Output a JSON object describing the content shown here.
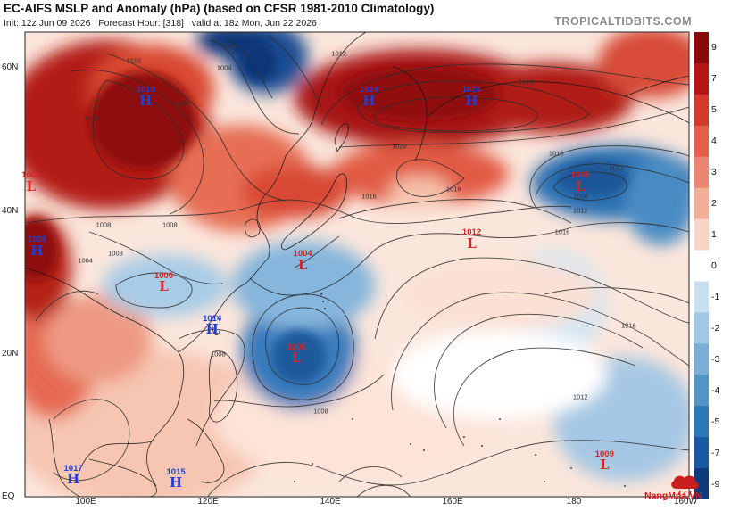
{
  "header": {
    "title": "EC-AIFS MSLP and Anomaly (hPa) (based on CFSR 1981-2010 Climatology)",
    "init": "Init: 12z Jun 09 2026",
    "forecast_hour": "Forecast Hour: [318]",
    "valid": "valid at 18z Mon, Jun 22 2026",
    "brand": "TROPICALTIDBITS.COM"
  },
  "axes": {
    "lat_labels": [
      "60N",
      "40N",
      "20N",
      "EQ"
    ],
    "lon_labels": [
      "100E",
      "120E",
      "140E",
      "160E",
      "180",
      "160W"
    ]
  },
  "colorbar": {
    "values": [
      "9",
      "7",
      "5",
      "4",
      "3",
      "2",
      "1",
      "0",
      "-1",
      "-2",
      "-3",
      "-4",
      "-5",
      "-7",
      "-9"
    ],
    "colors": [
      "#8a0a0a",
      "#b31515",
      "#d23a2a",
      "#e2604a",
      "#ec866e",
      "#f4ae98",
      "#f8d4c6",
      "#ffffff",
      "#c8dff0",
      "#a0c8e6",
      "#78aed8",
      "#5094c8",
      "#2c78b6",
      "#185aa0",
      "#0c3c7e"
    ]
  },
  "systems": [
    {
      "type": "H",
      "pressure": "1019",
      "lon": 110,
      "lat": 56
    },
    {
      "type": "H",
      "pressure": "1024",
      "lon": 147,
      "lat": 56
    },
    {
      "type": "H",
      "pressure": "1024",
      "lon": 164,
      "lat": 56
    },
    {
      "type": "L",
      "pressure": "1005",
      "lon": 182,
      "lat": 44
    },
    {
      "type": "L",
      "pressure": "1012",
      "lon": 164,
      "lat": 36
    },
    {
      "type": "L",
      "pressure": "1004",
      "lon": 136,
      "lat": 33
    },
    {
      "type": "H",
      "pressure": "1025",
      "lon": 92,
      "lat": 35
    },
    {
      "type": "L",
      "pressure": "1000",
      "lon": 113,
      "lat": 30
    },
    {
      "type": "L",
      "pressure": "1003",
      "lon": 91,
      "lat": 44
    },
    {
      "type": "H",
      "pressure": "1014",
      "lon": 121,
      "lat": 24
    },
    {
      "type": "L",
      "pressure": "1005",
      "lon": 135,
      "lat": 20
    },
    {
      "type": "L",
      "pressure": "1009",
      "lon": 186,
      "lat": 5
    },
    {
      "type": "H",
      "pressure": "1017",
      "lon": 98,
      "lat": 3
    },
    {
      "type": "H",
      "pressure": "1015",
      "lon": 115,
      "lat": 2.5
    }
  ],
  "isobar_labels": [
    {
      "text": "1012",
      "lon": 142,
      "lat": 62
    },
    {
      "text": "1000",
      "lon": 124,
      "lat": 63
    },
    {
      "text": "1004",
      "lon": 123,
      "lat": 60
    },
    {
      "text": "1008",
      "lon": 116,
      "lat": 55
    },
    {
      "text": "1012",
      "lon": 101,
      "lat": 53
    },
    {
      "text": "1016",
      "lon": 108,
      "lat": 61
    },
    {
      "text": "1016",
      "lon": 173,
      "lat": 58
    },
    {
      "text": "1016",
      "lon": 178,
      "lat": 48
    },
    {
      "text": "1020",
      "lon": 152,
      "lat": 49
    },
    {
      "text": "1016",
      "lon": 147,
      "lat": 42
    },
    {
      "text": "1016",
      "lon": 161,
      "lat": 43
    },
    {
      "text": "1012",
      "lon": 188,
      "lat": 46
    },
    {
      "text": "1008",
      "lon": 182,
      "lat": 42
    },
    {
      "text": "1012",
      "lon": 182,
      "lat": 40
    },
    {
      "text": "1016",
      "lon": 179,
      "lat": 37
    },
    {
      "text": "1008",
      "lon": 114,
      "lat": 38
    },
    {
      "text": "1008",
      "lon": 103,
      "lat": 38
    },
    {
      "text": "1004",
      "lon": 100,
      "lat": 33
    },
    {
      "text": "1008",
      "lon": 105,
      "lat": 34
    },
    {
      "text": "1008",
      "lon": 122,
      "lat": 20
    },
    {
      "text": "1008",
      "lon": 139,
      "lat": 12
    },
    {
      "text": "1016",
      "lon": 190,
      "lat": 24
    },
    {
      "text": "1012",
      "lon": 182,
      "lat": 14
    }
  ]
}
